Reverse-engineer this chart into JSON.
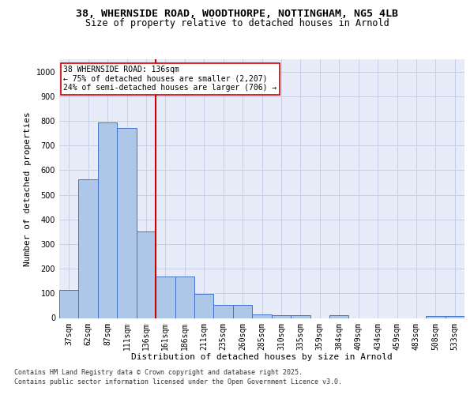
{
  "title_line1": "38, WHERNSIDE ROAD, WOODTHORPE, NOTTINGHAM, NG5 4LB",
  "title_line2": "Size of property relative to detached houses in Arnold",
  "xlabel": "Distribution of detached houses by size in Arnold",
  "ylabel": "Number of detached properties",
  "categories": [
    "37sqm",
    "62sqm",
    "87sqm",
    "111sqm",
    "136sqm",
    "161sqm",
    "186sqm",
    "211sqm",
    "235sqm",
    "260sqm",
    "285sqm",
    "310sqm",
    "335sqm",
    "359sqm",
    "384sqm",
    "409sqm",
    "434sqm",
    "459sqm",
    "483sqm",
    "508sqm",
    "533sqm"
  ],
  "values": [
    113,
    563,
    793,
    770,
    350,
    168,
    168,
    97,
    52,
    52,
    15,
    12,
    12,
    0,
    10,
    0,
    0,
    0,
    0,
    7,
    7
  ],
  "bar_color": "#aec6e8",
  "bar_edge_color": "#4472c4",
  "vline_x": 4.5,
  "vline_color": "#cc0000",
  "annotation_line1": "38 WHERNSIDE ROAD: 136sqm",
  "annotation_line2": "← 75% of detached houses are smaller (2,207)",
  "annotation_line3": "24% of semi-detached houses are larger (706) →",
  "annotation_box_edgecolor": "#cc0000",
  "ylim": [
    0,
    1050
  ],
  "yticks": [
    0,
    100,
    200,
    300,
    400,
    500,
    600,
    700,
    800,
    900,
    1000
  ],
  "grid_color": "#c8cfe8",
  "background_color": "#e8ecf8",
  "footer_line1": "Contains HM Land Registry data © Crown copyright and database right 2025.",
  "footer_line2": "Contains public sector information licensed under the Open Government Licence v3.0.",
  "title_fontsize": 9.5,
  "subtitle_fontsize": 8.5,
  "tick_fontsize": 7,
  "ylabel_fontsize": 8,
  "xlabel_fontsize": 8,
  "annotation_fontsize": 7,
  "footer_fontsize": 6
}
